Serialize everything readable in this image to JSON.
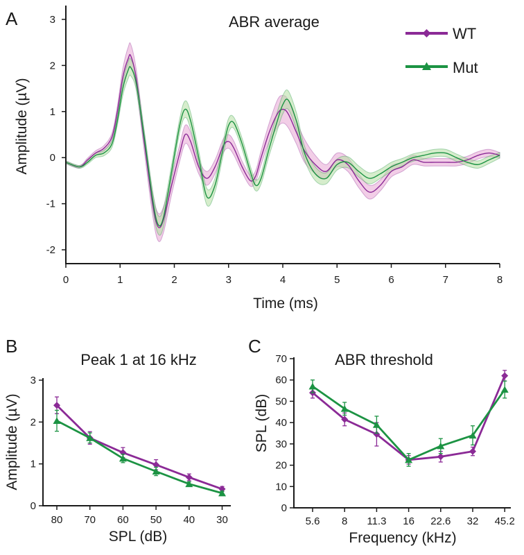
{
  "colors": {
    "wt": "#8b2a96",
    "mut": "#1c9343",
    "wt_band": "#e7a6d3",
    "mut_band": "#b5dea3"
  },
  "chart_data": [
    {
      "id": "A",
      "panel_letter": "A",
      "type": "line",
      "title": "ABR average",
      "xlabel": "Time (ms)",
      "ylabel": "Amplitude (µV)",
      "xlim": [
        0,
        8
      ],
      "ylim": [
        -2.3,
        3.3
      ],
      "xticks": [
        "0",
        "1",
        "2",
        "3",
        "4",
        "5",
        "6",
        "7",
        "8"
      ],
      "yticks": [
        "-2",
        "-1",
        "0",
        "1",
        "2",
        "3"
      ],
      "legend": {
        "position": "top-right",
        "entries": [
          "WT",
          "Mut"
        ]
      },
      "x": [
        0,
        0.25,
        0.4,
        0.55,
        0.7,
        0.85,
        0.95,
        1.05,
        1.15,
        1.2,
        1.3,
        1.45,
        1.6,
        1.7,
        1.8,
        1.95,
        2.1,
        2.2,
        2.3,
        2.45,
        2.6,
        2.75,
        2.9,
        3.0,
        3.1,
        3.25,
        3.4,
        3.5,
        3.6,
        3.75,
        3.9,
        4.0,
        4.1,
        4.25,
        4.4,
        4.6,
        4.8,
        5.0,
        5.2,
        5.4,
        5.6,
        5.8,
        6.0,
        6.2,
        6.4,
        6.6,
        6.8,
        7.0,
        7.2,
        7.4,
        7.6,
        7.8,
        8.0
      ],
      "series": [
        {
          "name": "WT",
          "values": [
            -0.1,
            -0.2,
            -0.05,
            0.1,
            0.2,
            0.45,
            1.0,
            1.75,
            2.15,
            2.2,
            1.7,
            0.3,
            -1.0,
            -1.5,
            -1.35,
            -0.6,
            0.1,
            0.5,
            0.35,
            -0.2,
            -0.45,
            -0.2,
            0.25,
            0.35,
            0.2,
            -0.2,
            -0.5,
            -0.4,
            0.0,
            0.55,
            0.95,
            1.05,
            0.95,
            0.55,
            0.15,
            -0.15,
            -0.3,
            -0.05,
            -0.15,
            -0.5,
            -0.75,
            -0.6,
            -0.3,
            -0.2,
            -0.05,
            -0.1,
            -0.1,
            -0.1,
            -0.1,
            -0.05,
            0.05,
            0.1,
            0.05
          ],
          "err": [
            0.03,
            0.03,
            0.04,
            0.05,
            0.06,
            0.08,
            0.12,
            0.18,
            0.25,
            0.25,
            0.2,
            0.2,
            0.25,
            0.3,
            0.28,
            0.2,
            0.18,
            0.2,
            0.2,
            0.15,
            0.15,
            0.15,
            0.15,
            0.15,
            0.15,
            0.12,
            0.12,
            0.12,
            0.15,
            0.2,
            0.3,
            0.3,
            0.3,
            0.25,
            0.25,
            0.2,
            0.15,
            0.15,
            0.15,
            0.15,
            0.15,
            0.12,
            0.12,
            0.1,
            0.1,
            0.08,
            0.08,
            0.08,
            0.08,
            0.08,
            0.08,
            0.08,
            0.06
          ]
        },
        {
          "name": "Mut",
          "values": [
            -0.1,
            -0.2,
            -0.1,
            0.05,
            0.1,
            0.3,
            0.8,
            1.5,
            1.9,
            1.95,
            1.6,
            0.4,
            -0.9,
            -1.45,
            -1.3,
            -0.3,
            0.7,
            1.05,
            0.8,
            0.0,
            -0.85,
            -0.6,
            0.2,
            0.7,
            0.75,
            0.3,
            -0.3,
            -0.6,
            -0.45,
            0.2,
            0.8,
            1.15,
            1.25,
            0.8,
            0.1,
            -0.35,
            -0.45,
            -0.15,
            -0.1,
            -0.3,
            -0.45,
            -0.35,
            -0.2,
            -0.1,
            0.0,
            0.05,
            0.1,
            0.1,
            0.0,
            -0.1,
            -0.15,
            -0.05,
            0.05
          ],
          "err": [
            0.03,
            0.03,
            0.04,
            0.05,
            0.06,
            0.08,
            0.1,
            0.15,
            0.18,
            0.18,
            0.15,
            0.15,
            0.18,
            0.2,
            0.2,
            0.15,
            0.15,
            0.18,
            0.18,
            0.15,
            0.18,
            0.15,
            0.15,
            0.15,
            0.12,
            0.12,
            0.12,
            0.12,
            0.12,
            0.15,
            0.2,
            0.2,
            0.2,
            0.18,
            0.15,
            0.15,
            0.12,
            0.12,
            0.12,
            0.12,
            0.12,
            0.1,
            0.1,
            0.08,
            0.08,
            0.08,
            0.08,
            0.08,
            0.08,
            0.08,
            0.08,
            0.08,
            0.06
          ]
        }
      ]
    },
    {
      "id": "B",
      "panel_letter": "B",
      "type": "line",
      "title": "Peak 1 at 16 kHz",
      "xlabel": "SPL (dB)",
      "ylabel": "Amplitude (µV)",
      "categories": [
        "80",
        "70",
        "60",
        "50",
        "40",
        "30"
      ],
      "ylim": [
        0,
        3
      ],
      "yticks": [
        "0",
        "1",
        "2",
        "3"
      ],
      "series": [
        {
          "name": "WT",
          "values": [
            2.4,
            1.62,
            1.27,
            0.98,
            0.68,
            0.4
          ],
          "err": [
            0.2,
            0.15,
            0.12,
            0.12,
            0.08,
            0.06
          ]
        },
        {
          "name": "Mut",
          "values": [
            2.03,
            1.62,
            1.13,
            0.82,
            0.52,
            0.3
          ],
          "err": [
            0.25,
            0.12,
            0.1,
            0.1,
            0.05,
            0.05
          ]
        }
      ]
    },
    {
      "id": "C",
      "panel_letter": "C",
      "type": "line",
      "title": "ABR threshold",
      "xlabel": "Frequency (kHz)",
      "ylabel": "SPL (dB)",
      "categories": [
        "5.6",
        "8",
        "11.3",
        "16",
        "22.6",
        "32",
        "45.2"
      ],
      "ylim": [
        0,
        70
      ],
      "yticks": [
        "0",
        "10",
        "20",
        "30",
        "40",
        "50",
        "60",
        "70"
      ],
      "series": [
        {
          "name": "WT",
          "values": [
            54,
            41.5,
            34.5,
            22.5,
            24,
            26.5,
            62
          ],
          "err": [
            2.5,
            3,
            5.5,
            2,
            2.5,
            2,
            2.5
          ]
        },
        {
          "name": "Mut",
          "values": [
            57,
            46.5,
            39,
            22.5,
            29,
            34,
            55.5
          ],
          "err": [
            3,
            3,
            4,
            3,
            3.5,
            4.5,
            4
          ]
        }
      ]
    }
  ]
}
